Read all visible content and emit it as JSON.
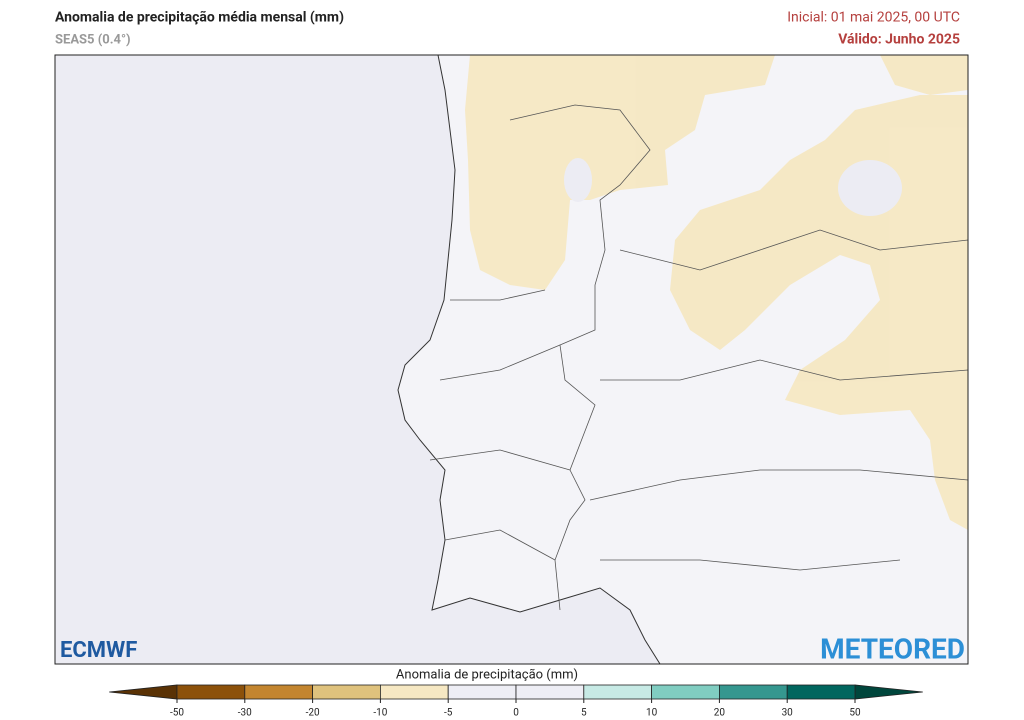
{
  "header": {
    "title": "Anomalia de precipitação média mensal (mm)",
    "subtitle": "SEAS5 (0.4°)",
    "initial": "Inicial: 01 mai 2025, 00 UTC",
    "valid": "Válido: Junho 2025"
  },
  "logos": {
    "left": "ECMWF",
    "right": "METEORED"
  },
  "legend": {
    "title": "Anomalia de precipitação (mm)",
    "ticks": [
      -50,
      -30,
      -20,
      -10,
      -5,
      0,
      5,
      10,
      20,
      30,
      50
    ],
    "colors": [
      "#5a3205",
      "#8c510a",
      "#c3852f",
      "#dfc27d",
      "#f6e8c3",
      "#eeeef5",
      "#eeeef5",
      "#c7eae5",
      "#80cdc1",
      "#35978f",
      "#01665e",
      "#00463c"
    ]
  }
}
